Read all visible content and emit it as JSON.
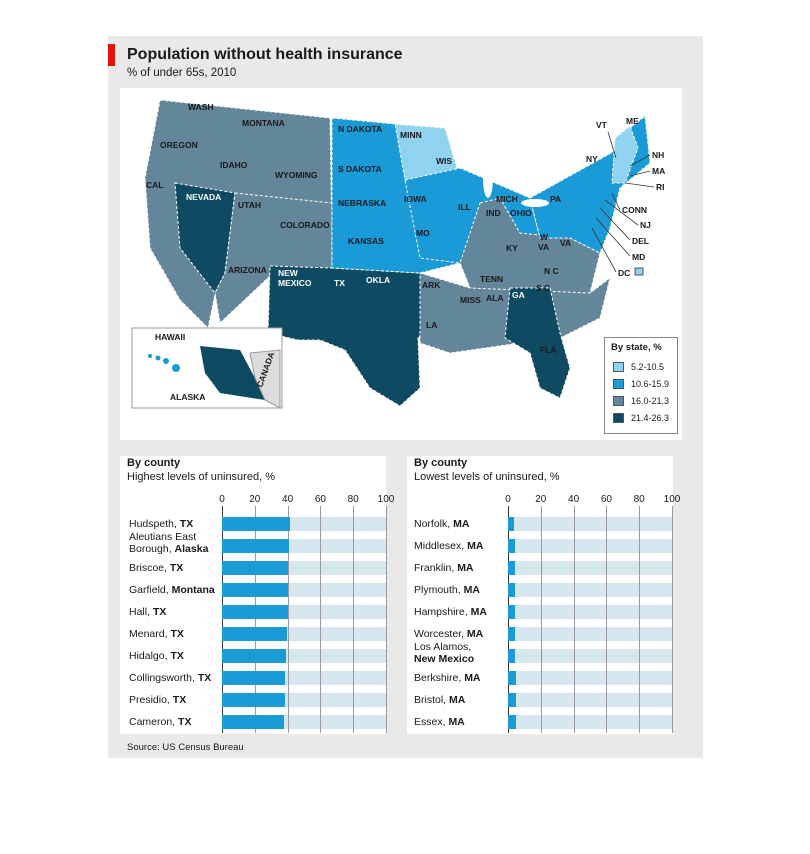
{
  "title": "Population without health insurance",
  "subtitle": "% of under 65s, 2010",
  "source": "Source: US Census Bureau",
  "colors": {
    "c1": "#8fd3f0",
    "c2": "#1a9ad6",
    "c3": "#64869a",
    "c4": "#0e4a62",
    "bar": "#1a9ad6",
    "track": "#d6e6ee",
    "panel": "#e9e9e8",
    "accent": "#e3120b"
  },
  "map": {
    "legend_title": "By state, %",
    "legend": [
      {
        "label": "5.2-10.5",
        "color": "#8fd3f0"
      },
      {
        "label": "10.6-15.9",
        "color": "#1a9ad6"
      },
      {
        "label": "16.0-21.3",
        "color": "#64869a"
      },
      {
        "label": "21.4-26.3",
        "color": "#0e4a62"
      }
    ],
    "hawaii": "HAWAII",
    "alaska": "ALASKA",
    "canada": "CANADA",
    "states": {
      "wash": "WASH",
      "oregon": "OREGON",
      "cal": "CAL",
      "nevada": "NEVADA",
      "idaho": "IDAHO",
      "montana": "MONTANA",
      "wyoming": "WYOMING",
      "utah": "UTAH",
      "arizona": "ARIZONA",
      "colorado": "COLORADO",
      "newmexico1": "NEW",
      "newmexico2": "MEXICO",
      "ndakota": "N DAKOTA",
      "sdakota": "S DAKOTA",
      "nebraska": "NEBRASKA",
      "kansas": "KANSAS",
      "okla": "OKLA",
      "tx": "TX",
      "minn": "MINN",
      "iowa": "IOWA",
      "mo": "MO",
      "ark": "ARK",
      "la": "LA",
      "wis": "WIS",
      "ill": "ILL",
      "mich": "MICH",
      "ind": "IND",
      "ohio": "OHIO",
      "ky": "KY",
      "tenn": "TENN",
      "miss": "MISS",
      "ala": "ALA",
      "ga": "GA",
      "fla": "FLA",
      "sc": "S C",
      "nc": "N C",
      "va": "VA",
      "wva1": "W",
      "wva2": "VA",
      "pa": "PA",
      "ny": "NY",
      "vt": "VT",
      "me": "ME",
      "nh": "NH",
      "ma": "MA",
      "ri": "RI",
      "conn": "CONN",
      "nj": "NJ",
      "del": "DEL",
      "md": "MD",
      "dc": "DC"
    }
  },
  "chart_data": [
    {
      "type": "bar",
      "orientation": "horizontal",
      "title": "By county",
      "subtitle": "Highest levels of uninsured, %",
      "xlim": [
        0,
        100
      ],
      "ticks": [
        0,
        20,
        40,
        60,
        80,
        100
      ],
      "categories": [
        {
          "name": "Hudspeth, ",
          "region": "TX"
        },
        {
          "name": "Aleutians East\nBorough, ",
          "region": "Alaska"
        },
        {
          "name": "Briscoe, ",
          "region": "TX"
        },
        {
          "name": "Garfield, ",
          "region": "Montana"
        },
        {
          "name": "Hall, ",
          "region": "TX"
        },
        {
          "name": "Menard, ",
          "region": "TX"
        },
        {
          "name": "Hidalgo, ",
          "region": "TX"
        },
        {
          "name": "Collingsworth, ",
          "region": "TX"
        },
        {
          "name": "Presidio, ",
          "region": "TX"
        },
        {
          "name": "Cameron, ",
          "region": "TX"
        }
      ],
      "values": [
        41.5,
        41,
        40.5,
        40,
        40,
        39.5,
        39,
        38.5,
        38.5,
        38
      ]
    },
    {
      "type": "bar",
      "orientation": "horizontal",
      "title": "By county",
      "subtitle": "Lowest levels of uninsured, %",
      "xlim": [
        0,
        100
      ],
      "ticks": [
        0,
        20,
        40,
        60,
        80,
        100
      ],
      "categories": [
        {
          "name": "Norfolk, ",
          "region": "MA"
        },
        {
          "name": "Middlesex, ",
          "region": "MA"
        },
        {
          "name": "Franklin, ",
          "region": "MA"
        },
        {
          "name": "Plymouth, ",
          "region": "MA"
        },
        {
          "name": "Hampshire, ",
          "region": "MA"
        },
        {
          "name": "Worcester, ",
          "region": "MA"
        },
        {
          "name": "Los Alamos,\n",
          "region": "New Mexico"
        },
        {
          "name": "Berkshire, ",
          "region": "MA"
        },
        {
          "name": "Bristol, ",
          "region": "MA"
        },
        {
          "name": "Essex, ",
          "region": "MA"
        }
      ],
      "values": [
        3.5,
        4,
        4,
        4.5,
        4.5,
        4.5,
        4.5,
        5,
        5,
        5
      ]
    }
  ]
}
